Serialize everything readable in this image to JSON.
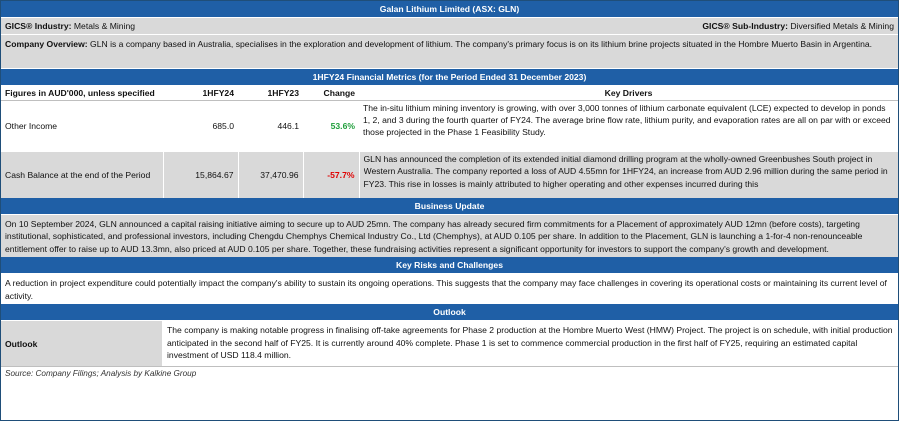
{
  "title": "Galan Lithium Limited (ASX: GLN)",
  "gics": {
    "industry_label": "GICS® Industry:",
    "industry_value": "Metals & Mining",
    "subindustry_label": "GICS® Sub-Industry:",
    "subindustry_value": "Diversified Metals & Mining"
  },
  "overview": {
    "label": "Company Overview:",
    "text": "GLN is a company based in Australia, specialises in the exploration and development of lithium. The company's primary focus is on its lithium brine projects situated in the Hombre Muerto Basin in Argentina."
  },
  "metrics": {
    "heading": "1HFY24 Financial Metrics (for the Period Ended 31 December 2023)",
    "columns": [
      "Figures in AUD'000, unless specified",
      "1HFY24",
      "1HFY23",
      "Change",
      "Key Drivers"
    ],
    "rows": [
      {
        "label": "Other Income",
        "v1": "685.0",
        "v2": "446.1",
        "change": "53.6%",
        "drivers": "The in-situ lithium mining inventory is growing, with over 3,000 tonnes of lithium carbonate equivalent (LCE) expected to develop in ponds 1, 2, and 3 during the fourth quarter of FY24. The average brine flow rate, lithium purity, and evaporation rates are all on par with or exceed those projected in the Phase 1 Feasibility Study."
      },
      {
        "label": "Cash Balance at the end of the Period",
        "v1": "15,864.67",
        "v2": "37,470.96",
        "change": "-57.7%",
        "drivers": "GLN has announced the completion of its extended initial diamond drilling program at the wholly-owned Greenbushes South project in Western Australia. The company reported a loss of AUD 4.55mn for 1HFY24, an increase from AUD 2.96 million during the same period in FY23. This rise in losses is mainly attributed to higher operating and other expenses incurred during this"
      }
    ]
  },
  "business_update": {
    "heading": "Business Update",
    "text": "On 10 September 2024, GLN announced a capital raising initiative aiming to secure up to AUD 25mn. The company has already secured firm commitments for a Placement of approximately AUD 12mn (before costs), targeting institutional, sophisticated, and professional investors, including Chengdu Chemphys Chemical Industry Co., Ltd (Chemphys), at AUD 0.105 per share. In addition to the Placement, GLN is launching a 1-for-4 non-renounceable entitlement offer to raise up to AUD 13.3mn, also priced at AUD 0.105 per share. Together, these fundraising activities represent a significant opportunity for investors to support the company's growth and development."
  },
  "risks": {
    "heading": "Key Risks and Challenges",
    "text": "A reduction in project expenditure could potentially impact the company's ability to sustain its ongoing operations. This suggests that the company may face challenges in covering its operational costs or maintaining its current level of activity."
  },
  "outlook": {
    "heading": "Outlook",
    "label": "Outlook",
    "text": "The company is making notable progress in finalising off-take agreements for Phase 2 production at the Hombre Muerto West (HMW) Project. The project is on schedule, with initial production anticipated in the second half of FY25. It is currently around 40% complete. Phase 1 is set to commence commercial production in the first half of FY25, requiring an estimated capital investment of USD 118.4 million."
  },
  "source": "Source: Company Filings; Analysis by Kalkine Group",
  "colors": {
    "header_blue": "#1f5fa6",
    "panel_grey": "#d9d9d9",
    "positive_green": "#1e9e3a",
    "negative_red": "#e00000"
  }
}
